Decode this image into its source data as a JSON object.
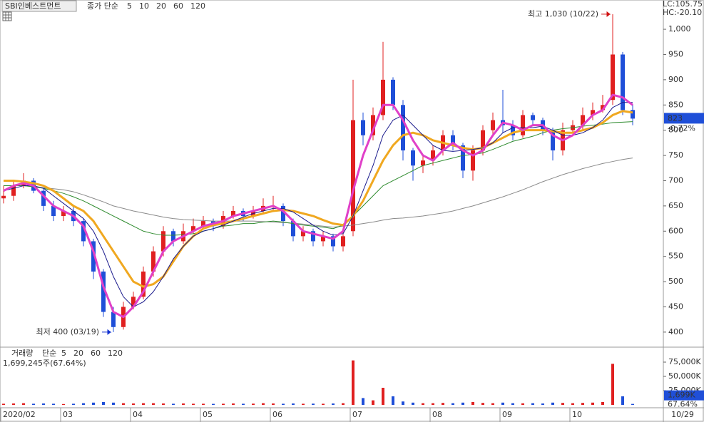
{
  "chart_data": [
    {
      "type": "candlestick",
      "title": "SBI인베스트먼트",
      "legend_label": "종가 단순",
      "categories": [
        "2020/02",
        null,
        null,
        null,
        null,
        null,
        "03",
        null,
        null,
        null,
        null,
        null,
        null,
        "04",
        null,
        null,
        null,
        null,
        null,
        null,
        "05",
        null,
        null,
        null,
        null,
        null,
        null,
        "06",
        null,
        null,
        null,
        null,
        null,
        null,
        null,
        "07",
        null,
        null,
        null,
        null,
        null,
        null,
        null,
        "08",
        null,
        null,
        null,
        null,
        null,
        null,
        "09",
        null,
        null,
        null,
        null,
        null,
        null,
        "10",
        null,
        null,
        null,
        null,
        null,
        null
      ],
      "x_end_label": "10/29",
      "open": [
        665,
        670,
        690,
        700,
        680,
        650,
        630,
        640,
        620,
        580,
        520,
        440,
        410,
        450,
        470,
        520,
        560,
        600,
        580,
        600,
        610,
        620,
        610,
        630,
        640,
        630,
        640,
        650,
        650,
        620,
        590,
        600,
        580,
        590,
        570,
        600,
        820,
        790,
        830,
        900,
        850,
        760,
        730,
        740,
        760,
        790,
        770,
        720,
        760,
        800,
        820,
        810,
        790,
        830,
        820,
        800,
        760,
        800,
        810,
        830,
        840,
        860,
        950,
        840
      ],
      "high": [
        690,
        700,
        715,
        705,
        685,
        660,
        650,
        650,
        625,
        585,
        525,
        450,
        460,
        480,
        530,
        570,
        610,
        605,
        615,
        625,
        630,
        625,
        640,
        650,
        645,
        650,
        665,
        670,
        655,
        625,
        610,
        605,
        600,
        595,
        600,
        900,
        835,
        845,
        975,
        905,
        860,
        765,
        750,
        770,
        800,
        800,
        775,
        770,
        810,
        835,
        880,
        820,
        840,
        835,
        825,
        805,
        815,
        820,
        845,
        855,
        870,
        1030,
        955,
        850
      ],
      "low": [
        655,
        660,
        685,
        675,
        640,
        620,
        620,
        610,
        570,
        505,
        430,
        400,
        405,
        445,
        465,
        510,
        550,
        570,
        575,
        595,
        605,
        600,
        605,
        625,
        620,
        625,
        635,
        640,
        610,
        580,
        580,
        570,
        570,
        560,
        560,
        590,
        770,
        780,
        820,
        840,
        740,
        700,
        715,
        730,
        750,
        760,
        705,
        700,
        750,
        790,
        795,
        780,
        785,
        810,
        790,
        740,
        750,
        795,
        800,
        820,
        835,
        850,
        830,
        810
      ],
      "close": [
        670,
        690,
        700,
        680,
        650,
        630,
        640,
        620,
        580,
        520,
        440,
        410,
        450,
        470,
        520,
        560,
        600,
        580,
        600,
        610,
        620,
        610,
        630,
        640,
        630,
        640,
        650,
        650,
        620,
        590,
        600,
        580,
        590,
        570,
        590,
        820,
        790,
        830,
        900,
        850,
        760,
        730,
        740,
        760,
        790,
        770,
        720,
        760,
        800,
        820,
        810,
        790,
        830,
        820,
        800,
        760,
        800,
        810,
        830,
        840,
        850,
        950,
        840,
        823
      ],
      "up_color": "#e02020",
      "down_color": "#1f4fd8",
      "series": [
        {
          "name": "5",
          "color": "#e040c8",
          "width": 3,
          "values": [
            680,
            690,
            695,
            690,
            670,
            650,
            640,
            630,
            610,
            560,
            490,
            440,
            430,
            450,
            480,
            520,
            560,
            580,
            590,
            600,
            610,
            615,
            620,
            630,
            635,
            640,
            645,
            650,
            640,
            620,
            600,
            595,
            590,
            585,
            600,
            680,
            750,
            800,
            850,
            850,
            820,
            780,
            750,
            740,
            760,
            775,
            760,
            750,
            760,
            790,
            815,
            810,
            800,
            810,
            810,
            790,
            780,
            790,
            810,
            830,
            840,
            870,
            865,
            850
          ]
        },
        {
          "name": "10",
          "color": "#1a1a8c",
          "width": 1,
          "values": [
            680,
            685,
            690,
            690,
            685,
            670,
            655,
            640,
            625,
            600,
            560,
            510,
            470,
            450,
            460,
            480,
            510,
            545,
            570,
            590,
            600,
            605,
            612,
            620,
            628,
            635,
            640,
            645,
            645,
            638,
            625,
            612,
            600,
            592,
            595,
            630,
            680,
            730,
            790,
            820,
            830,
            810,
            790,
            770,
            760,
            758,
            760,
            762,
            765,
            775,
            795,
            805,
            805,
            805,
            808,
            800,
            790,
            790,
            795,
            805,
            820,
            845,
            855,
            855
          ]
        },
        {
          "name": "20",
          "color": "#f0a820",
          "width": 3,
          "values": [
            700,
            700,
            698,
            695,
            690,
            680,
            665,
            650,
            640,
            620,
            590,
            560,
            530,
            500,
            490,
            495,
            510,
            540,
            570,
            590,
            605,
            612,
            615,
            620,
            625,
            630,
            635,
            640,
            642,
            640,
            635,
            630,
            622,
            615,
            612,
            630,
            660,
            700,
            740,
            770,
            790,
            795,
            790,
            780,
            775,
            770,
            765,
            762,
            765,
            775,
            785,
            795,
            800,
            800,
            800,
            798,
            795,
            795,
            800,
            805,
            815,
            830,
            838,
            835
          ]
        },
        {
          "name": "60",
          "color": "#2e8b2e",
          "width": 1,
          "values": [
            690,
            690,
            690,
            688,
            685,
            680,
            675,
            668,
            660,
            650,
            640,
            630,
            620,
            610,
            600,
            595,
            592,
            592,
            593,
            595,
            600,
            605,
            610,
            612,
            615,
            615,
            618,
            620,
            618,
            615,
            612,
            610,
            608,
            605,
            612,
            630,
            650,
            670,
            690,
            700,
            710,
            720,
            730,
            735,
            740,
            745,
            750,
            752,
            755,
            762,
            770,
            778,
            783,
            788,
            795,
            800,
            803,
            805,
            808,
            810,
            812,
            815,
            816,
            817
          ]
        },
        {
          "name": "120",
          "color": "#8a8a8a",
          "width": 1,
          "values": [
            690,
            690,
            690,
            688,
            686,
            684,
            682,
            678,
            672,
            665,
            658,
            650,
            645,
            640,
            636,
            632,
            628,
            625,
            623,
            622,
            621,
            620,
            620,
            620,
            620,
            620,
            619,
            618,
            617,
            616,
            614,
            612,
            610,
            608,
            610,
            612,
            615,
            618,
            622,
            625,
            626,
            628,
            630,
            633,
            636,
            640,
            645,
            650,
            656,
            662,
            668,
            675,
            682,
            690,
            698,
            705,
            712,
            718,
            724,
            729,
            734,
            738,
            742,
            745
          ]
        }
      ],
      "ylim": [
        373,
        1058
      ],
      "yticks": [
        400,
        450,
        500,
        550,
        600,
        650,
        700,
        750,
        800,
        850,
        900,
        950,
        {
          "value": 1000,
          "label": "1,000"
        }
      ],
      "annotations": [
        {
          "text": "최고 1,030 (10/22)",
          "color": "#d01010"
        },
        {
          "text": "최저 400 (03/19)",
          "color": "#1030d0"
        }
      ],
      "right_labels": {
        "lc": "LC:105.75",
        "hc": "HC:-20.10",
        "last": "823",
        "change": "-0.72%"
      }
    },
    {
      "type": "bar",
      "title": "거래량",
      "legend_label": "단순",
      "legend_names": [
        "5",
        "20",
        "60",
        "120"
      ],
      "legend_colors": [
        "#e040c8",
        "#f0a820",
        "#2e8b2e",
        "#8a8a8a"
      ],
      "subtitle": "1,699,245주(67.64%)",
      "values": [
        2000,
        2500,
        3000,
        2000,
        2500,
        2000,
        1500,
        2000,
        3000,
        4000,
        5000,
        4000,
        3000,
        2500,
        3000,
        3000,
        2500,
        2000,
        2500,
        2000,
        2000,
        1800,
        2000,
        2500,
        2000,
        2200,
        3000,
        2500,
        2000,
        2500,
        2000,
        2200,
        2000,
        2500,
        3000,
        78000,
        12000,
        8000,
        30000,
        15000,
        6000,
        4000,
        3000,
        3000,
        3500,
        3000,
        4000,
        5000,
        3500,
        3000,
        4000,
        3000,
        2800,
        3000,
        2500,
        4000,
        3500,
        3000,
        3500,
        4000,
        5000,
        72000,
        15000,
        1699
      ],
      "ylim": [
        0,
        97500
      ],
      "yticks": [
        {
          "value": 25000,
          "label": "25,000K"
        },
        {
          "value": 50000,
          "label": "50,000K"
        },
        {
          "value": 75000,
          "label": "75,000K"
        }
      ],
      "right_labels": {
        "last": "1,699K",
        "ratio": "67.64%"
      }
    }
  ]
}
